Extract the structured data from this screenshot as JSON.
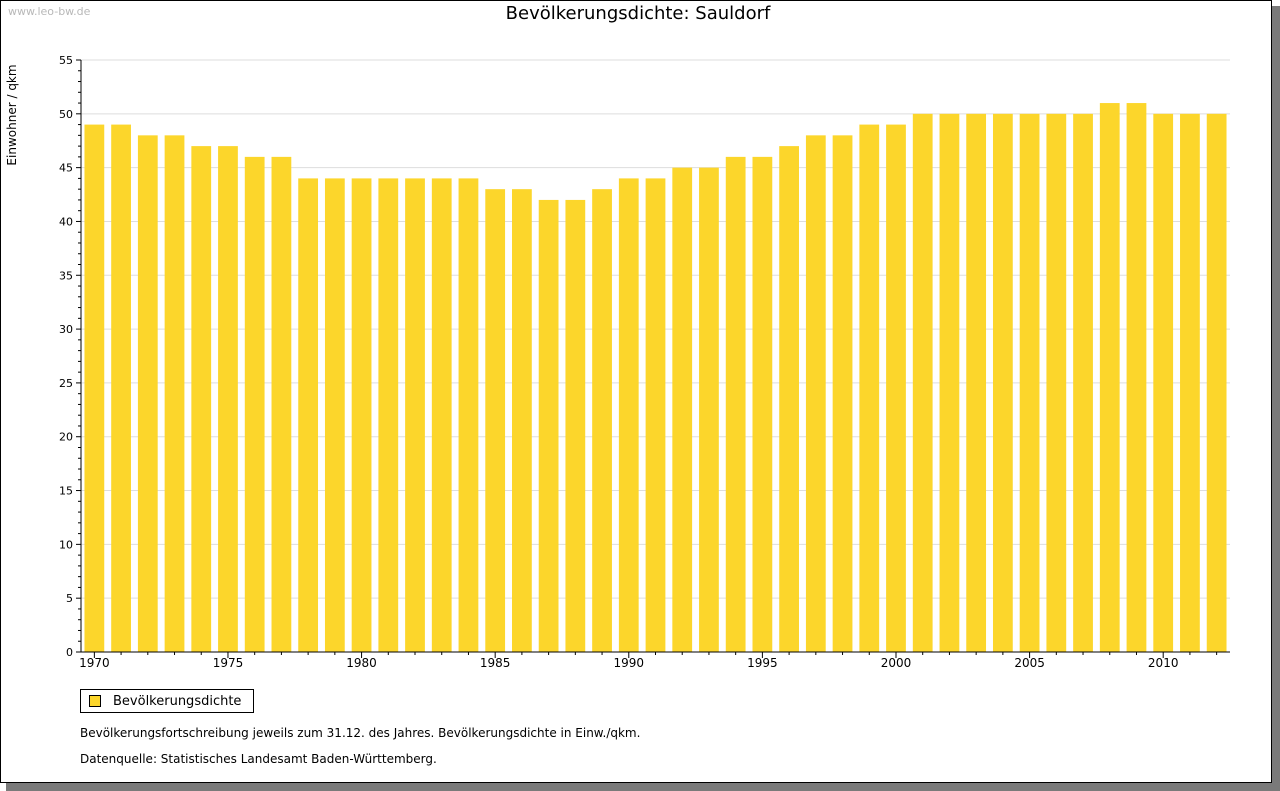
{
  "watermark": "www.leo-bw.de",
  "colors": {
    "bar": "#FCD62B",
    "grid": "#dddddd",
    "axis": "#000000",
    "shadow": "#7a7a7a"
  },
  "legend": {
    "label": "Bevölkerungsdichte"
  },
  "notes": {
    "line1": "Bevölkerungsfortschreibung jeweils zum 31.12. des Jahres. Bevölkerungsdichte in Einw./qkm.",
    "line2": "Datenquelle: Statistisches Landesamt Baden-Württemberg."
  },
  "chart_data": {
    "type": "bar",
    "title": "Bevölkerungsdichte: Sauldorf",
    "xlabel": "",
    "ylabel": "Einwohner / qkm",
    "ylim": [
      0,
      55
    ],
    "yticks": [
      0,
      5,
      10,
      15,
      20,
      25,
      30,
      35,
      40,
      45,
      50,
      55
    ],
    "xtick_labels": [
      "1970",
      "1975",
      "1980",
      "1985",
      "1990",
      "1995",
      "2000",
      "2005",
      "2010"
    ],
    "grid": true,
    "legend_position": "bottom-left",
    "categories": [
      1970,
      1971,
      1972,
      1973,
      1974,
      1975,
      1976,
      1977,
      1978,
      1979,
      1980,
      1981,
      1982,
      1983,
      1984,
      1985,
      1986,
      1987,
      1988,
      1989,
      1990,
      1991,
      1992,
      1993,
      1994,
      1995,
      1996,
      1997,
      1998,
      1999,
      2000,
      2001,
      2002,
      2003,
      2004,
      2005,
      2006,
      2007,
      2008,
      2009,
      2010,
      2011,
      2012
    ],
    "series": [
      {
        "name": "Bevölkerungsdichte",
        "values": [
          49,
          49,
          48,
          48,
          47,
          47,
          46,
          46,
          44,
          44,
          44,
          44,
          44,
          44,
          44,
          43,
          43,
          42,
          42,
          43,
          44,
          44,
          45,
          45,
          46,
          46,
          47,
          48,
          48,
          49,
          49,
          50,
          50,
          50,
          50,
          50,
          50,
          50,
          51,
          51,
          50,
          50,
          50
        ]
      }
    ]
  }
}
